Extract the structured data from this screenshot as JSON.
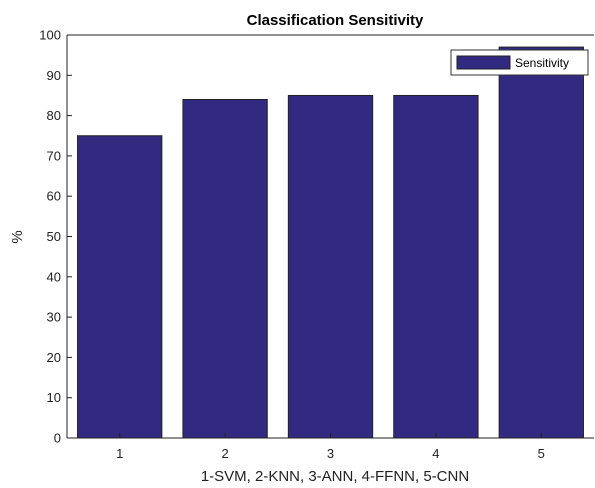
{
  "chart_data": {
    "type": "bar",
    "title": "Classification Sensitivity",
    "xlabel": "1-SVM, 2-KNN, 3-ANN, 4-FFNN, 5-CNN",
    "ylabel": "%",
    "categories": [
      "1",
      "2",
      "3",
      "4",
      "5"
    ],
    "series": [
      {
        "name": "Sensitivity",
        "values": [
          75,
          84,
          85,
          85,
          97
        ],
        "color": "#322a80"
      }
    ],
    "ylim": [
      0,
      100
    ],
    "yticks": [
      "0",
      "10",
      "20",
      "30",
      "40",
      "50",
      "60",
      "70",
      "80",
      "90",
      "100"
    ],
    "grid": false,
    "legend": "top-right"
  }
}
